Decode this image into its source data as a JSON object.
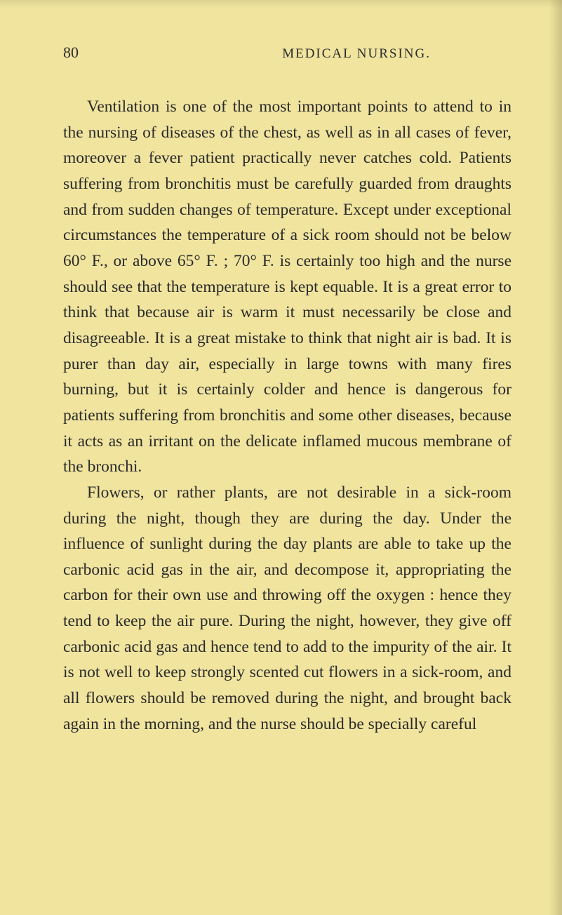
{
  "page": {
    "number": "80",
    "running_head": "MEDICAL NURSING.",
    "background_color": "#f0e49f",
    "text_color": "#2a2a2a",
    "font_family": "Georgia, 'Times New Roman', serif",
    "body_fontsize": 23.5,
    "line_height": 1.56,
    "header_fontsize": 19,
    "page_number_fontsize": 22,
    "text_indent": 34,
    "paragraphs": [
      "Ventilation is one of the most important points to attend to in the nursing of diseases of the chest, as well as in all cases of fever, moreover a fever patient practically never catches cold. Patients suffering from bronchitis must be carefully guarded from draughts and from sudden changes of temperature. Except under exceptional circumstances the temperature of a sick room should not be below 60° F., or above 65° F. ; 70° F. is certainly too high and the nurse should see that the temperature is kept equable. It is a great error to think that because air is warm it must necessarily be close and disagreeable. It is a great mistake to think that night air is bad. It is purer than day air, especially in large towns with many fires burning, but it is certainly colder and hence is dangerous for patients suffering from bronchitis and some other diseases, because it acts as an irritant on the delicate inflamed mucous membrane of the bronchi.",
      "Flowers, or rather plants, are not desirable in a sick-room during the night, though they are during the day. Under the influence of sunlight during the day plants are able to take up the carbonic acid gas in the air, and decompose it, appropriating the carbon for their own use and throwing off the oxygen : hence they tend to keep the air pure. During the night, however, they give off carbonic acid gas and hence tend to add to the impurity of the air. It is not well to keep strongly scented cut flowers in a sick-room, and all flowers should be removed during the night, and brought back again in the morning, and the nurse should be specially careful"
    ]
  }
}
